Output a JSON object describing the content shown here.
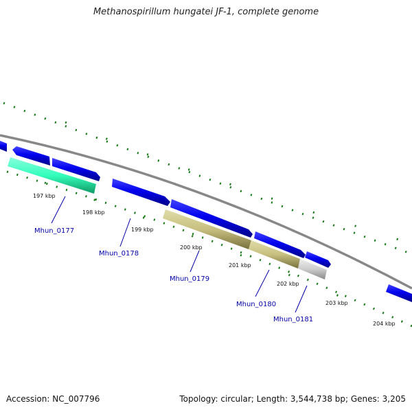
{
  "title": "Methanospirillum hungatei JF-1, complete genome",
  "footer": {
    "accession": "Accession: NC_007796",
    "summary": "Topology: circular; Length: 3,544,738 bp; Genes: 3,205"
  },
  "scale_labels": [
    "197 kbp",
    "198 kbp",
    "199 kbp",
    "200 kbp",
    "201 kbp",
    "202 kbp",
    "203 kbp",
    "204 kbp"
  ],
  "genes": [
    "Mhun_0177",
    "Mhun_0178",
    "Mhun_0179",
    "Mhun_0180",
    "Mhun_0181"
  ],
  "colors": {
    "backbone": "#888888",
    "cds_blue": "#0000ee",
    "cds_teal": "#33ffbb",
    "cds_olive": "#c8c080",
    "cds_grey": "#cccccc",
    "tick_green": "#1a7a1a",
    "label_blue": "#0000aa"
  }
}
